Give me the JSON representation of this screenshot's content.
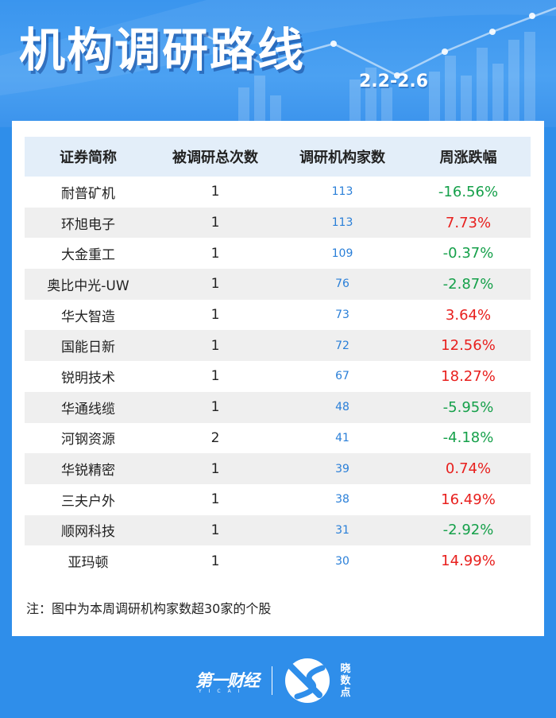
{
  "header": {
    "title": "机构调研路线",
    "date_range": "2.2-2.6"
  },
  "table": {
    "columns": [
      "证券简称",
      "被调研总次数",
      "调研机构家数",
      "周涨跌幅"
    ],
    "rows": [
      {
        "name": "耐普矿机",
        "times": "1",
        "institutions": "113",
        "change": "-16.56%"
      },
      {
        "name": "环旭电子",
        "times": "1",
        "institutions": "113",
        "change": "7.73%"
      },
      {
        "name": "大金重工",
        "times": "1",
        "institutions": "109",
        "change": "-0.37%"
      },
      {
        "name": "奥比中光-UW",
        "times": "1",
        "institutions": "76",
        "change": "-2.87%"
      },
      {
        "name": "华大智造",
        "times": "1",
        "institutions": "73",
        "change": "3.64%"
      },
      {
        "name": "国能日新",
        "times": "1",
        "institutions": "72",
        "change": "12.56%"
      },
      {
        "name": "锐明技术",
        "times": "1",
        "institutions": "67",
        "change": "18.27%"
      },
      {
        "name": "华通线缆",
        "times": "1",
        "institutions": "48",
        "change": "-5.95%"
      },
      {
        "name": "河钢资源",
        "times": "2",
        "institutions": "41",
        "change": "-4.18%"
      },
      {
        "name": "华锐精密",
        "times": "1",
        "institutions": "39",
        "change": "0.74%"
      },
      {
        "name": "三夫户外",
        "times": "1",
        "institutions": "38",
        "change": "16.49%"
      },
      {
        "name": "顺网科技",
        "times": "1",
        "institutions": "31",
        "change": "-2.92%"
      },
      {
        "name": "亚玛顿",
        "times": "1",
        "institutions": "30",
        "change": "14.99%"
      }
    ]
  },
  "note": "注：图中为本周调研机构家数超30家的个股",
  "footer": {
    "brand_main": "第一财经",
    "brand_main_sub": "YICAI",
    "brand_secondary": "晓数点"
  },
  "colors": {
    "background": "#2f8eea",
    "header_row": "#e3eef9",
    "positive_change": "#e8201e",
    "negative_change": "#15a04a",
    "institution_count": "#2a7fd8"
  }
}
